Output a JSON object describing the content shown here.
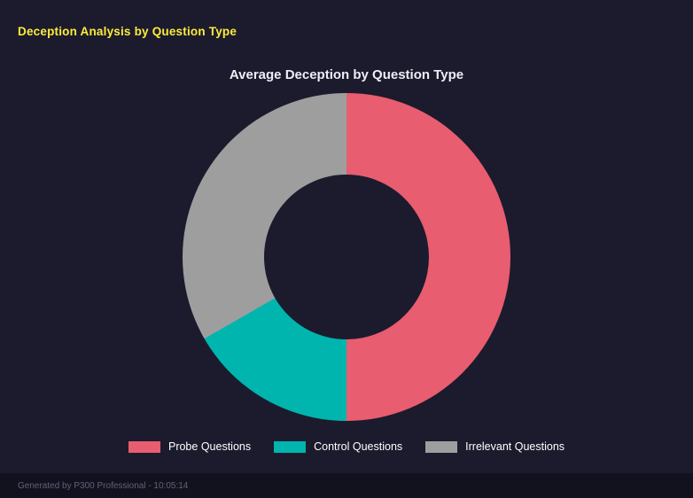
{
  "header": {
    "title": "Deception Analysis by Question Type"
  },
  "chart_data": {
    "type": "pie",
    "variant": "doughnut",
    "title": "Average Deception by Question Type",
    "categories": [
      "Probe Questions",
      "Control Questions",
      "Irrelevant Questions"
    ],
    "values": [
      50,
      16.7,
      33.3
    ],
    "unit": "percent_of_total (estimated from arc angles, no numeric labels shown)",
    "colors": [
      "#e85d6f",
      "#00b5ad",
      "#9e9e9e"
    ],
    "legend_position": "bottom",
    "cutout": "50%",
    "start_angle_deg": 0,
    "direction": "clockwise"
  },
  "footer": {
    "text": "Generated by P300 Professional - 10:05:14"
  },
  "colors": {
    "background": "#1b1b2d",
    "footer_background": "#12121f",
    "header_text": "#ffeb3b",
    "title_text": "#eceff4",
    "legend_text": "#ffffff",
    "footer_text": "#5f6377"
  }
}
